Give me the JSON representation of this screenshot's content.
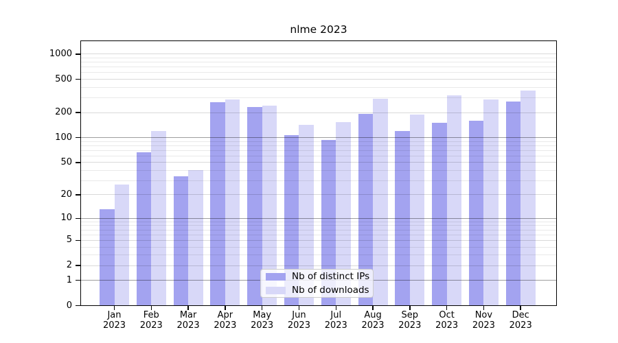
{
  "title": "nlme 2023",
  "chart_data": {
    "type": "bar",
    "title": "nlme 2023",
    "x_categories": [
      {
        "month": "Jan",
        "year": "2023"
      },
      {
        "month": "Feb",
        "year": "2023"
      },
      {
        "month": "Mar",
        "year": "2023"
      },
      {
        "month": "Apr",
        "year": "2023"
      },
      {
        "month": "May",
        "year": "2023"
      },
      {
        "month": "Jun",
        "year": "2023"
      },
      {
        "month": "Jul",
        "year": "2023"
      },
      {
        "month": "Aug",
        "year": "2023"
      },
      {
        "month": "Sep",
        "year": "2023"
      },
      {
        "month": "Oct",
        "year": "2023"
      },
      {
        "month": "Nov",
        "year": "2023"
      },
      {
        "month": "Dec",
        "year": "2023"
      }
    ],
    "series": [
      {
        "name": "Nb of distinct IPs",
        "color": "#a3a3f0",
        "values": [
          13,
          66,
          34,
          265,
          232,
          108,
          93,
          192,
          121,
          151,
          159,
          270
        ]
      },
      {
        "name": "Nb of downloads",
        "color": "#d8d8f8",
        "values": [
          27,
          120,
          40,
          285,
          241,
          143,
          155,
          291,
          190,
          320,
          285,
          365
        ]
      }
    ],
    "y_axis": {
      "scale": "log10(1+y)",
      "ticks": [
        0,
        1,
        2,
        5,
        10,
        20,
        50,
        100,
        200,
        500,
        1000
      ],
      "range_top": 1455
    },
    "grid": {
      "strong_lines": [
        1,
        10,
        100
      ],
      "mid_lines": [
        2,
        5,
        20,
        50,
        200,
        500,
        1000
      ],
      "minor_mantissas": [
        3,
        4,
        6,
        7,
        8,
        9
      ],
      "grid_on": true
    },
    "legend": {
      "position": "inside-bottom-center",
      "items": [
        "Nb of distinct IPs",
        "Nb of downloads"
      ]
    },
    "colors": {
      "spine": "#000000",
      "grid_strong": "rgba(0,0,0,0.38)",
      "grid_mid": "rgba(0,0,0,0.15)",
      "grid_minor": "rgba(0,0,0,0.085)",
      "legend_bg": "rgba(255,255,255,0.8)",
      "legend_border": "#cccccc",
      "text": "#000000"
    }
  }
}
